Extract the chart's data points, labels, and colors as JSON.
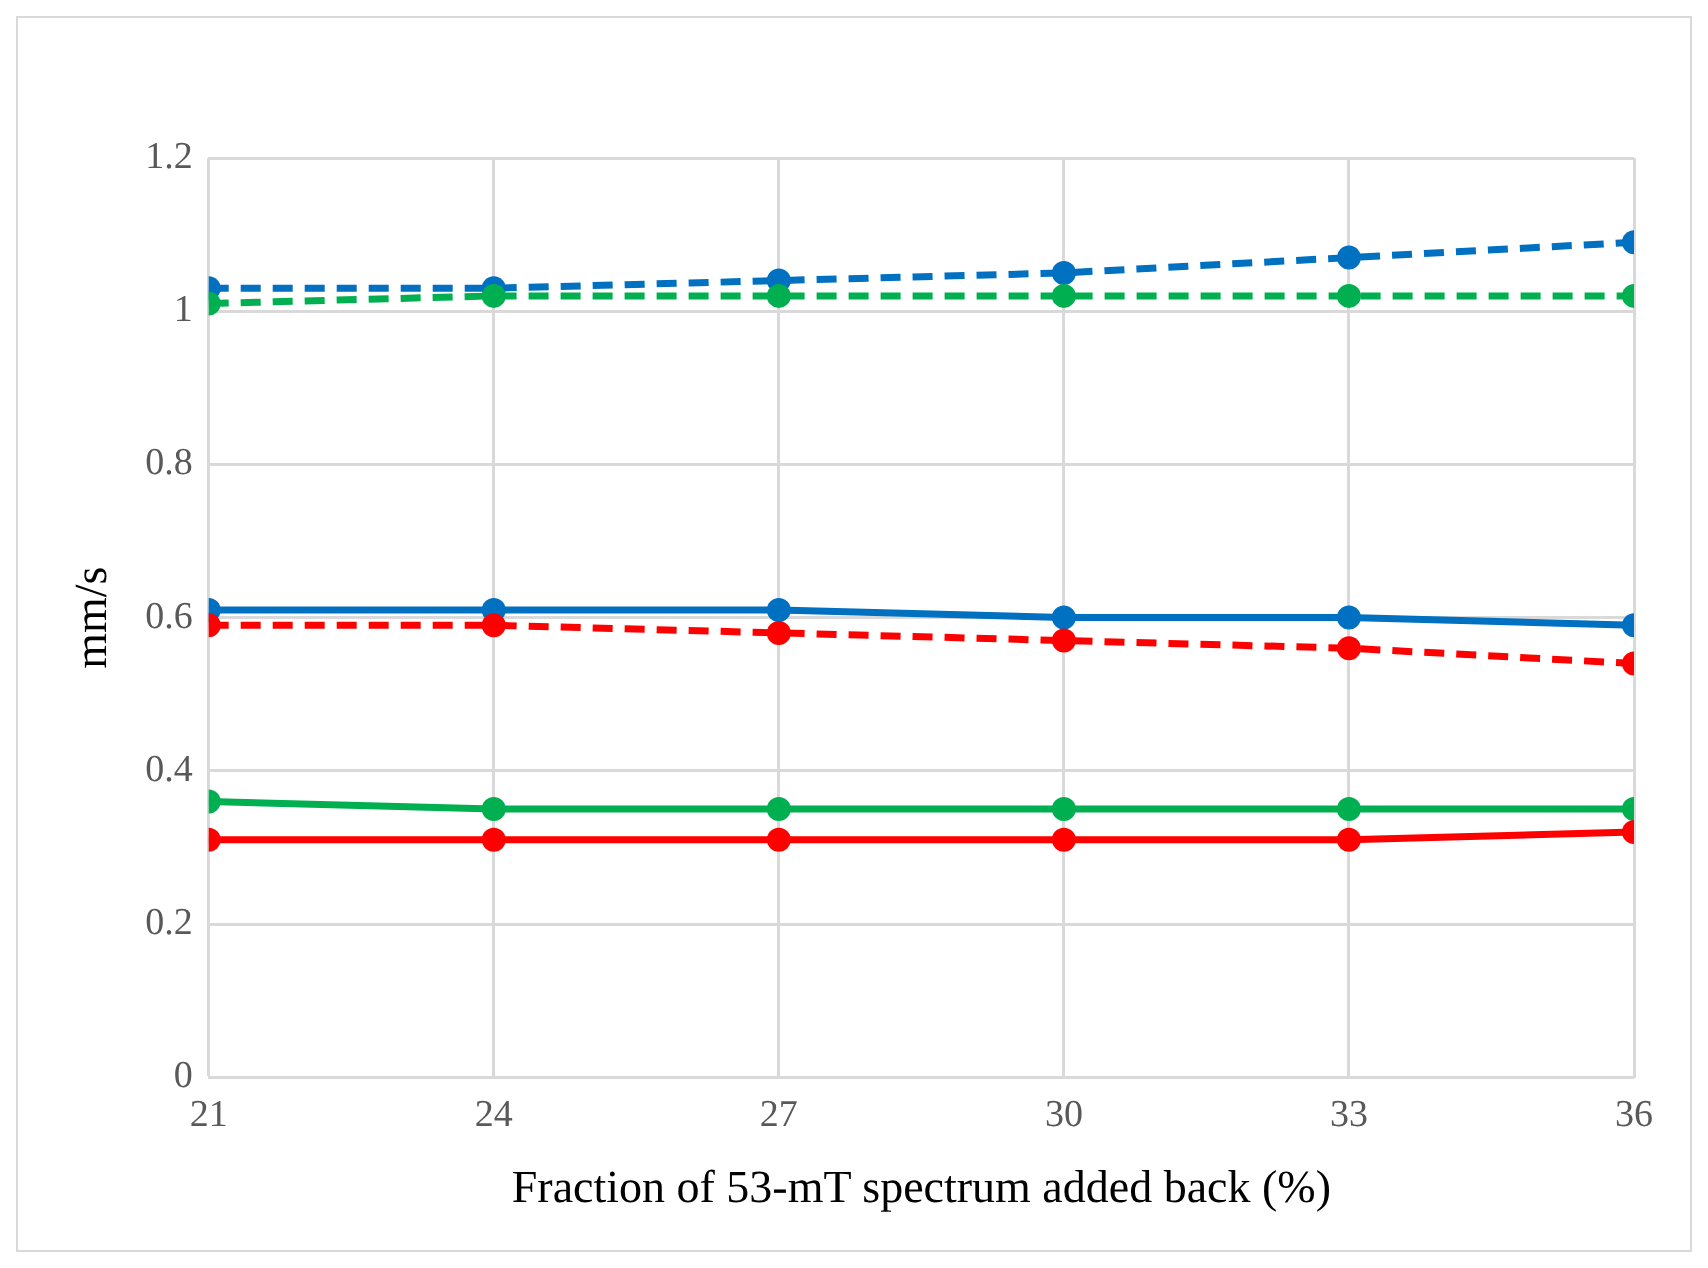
{
  "chart_data": {
    "type": "line",
    "xlabel": "Fraction of 53-mT spectrum added back (%)",
    "ylabel": "mm/s",
    "x": [
      21,
      24,
      27,
      30,
      33,
      36
    ],
    "xlim": [
      21,
      36
    ],
    "xticks": [
      21,
      24,
      27,
      30,
      33,
      36
    ],
    "ylim": [
      0,
      1.2
    ],
    "yticks": [
      0,
      0.2,
      0.4,
      0.6,
      0.8,
      1,
      1.2
    ],
    "grid": true,
    "legend": false,
    "marker": "circle",
    "series": [
      {
        "color": "#0070c0",
        "line_style": "dashed",
        "values": [
          1.03,
          1.03,
          1.04,
          1.05,
          1.07,
          1.09
        ]
      },
      {
        "color": "#00b050",
        "line_style": "dashed",
        "values": [
          1.01,
          1.02,
          1.02,
          1.02,
          1.02,
          1.02
        ]
      },
      {
        "color": "#0070c0",
        "line_style": "solid",
        "values": [
          0.61,
          0.61,
          0.61,
          0.6,
          0.6,
          0.59
        ]
      },
      {
        "color": "#ff0000",
        "line_style": "dashed",
        "values": [
          0.59,
          0.59,
          0.58,
          0.57,
          0.56,
          0.54
        ]
      },
      {
        "color": "#00b050",
        "line_style": "solid",
        "values": [
          0.36,
          0.35,
          0.35,
          0.35,
          0.35,
          0.35
        ]
      },
      {
        "color": "#ff0000",
        "line_style": "solid",
        "values": [
          0.31,
          0.31,
          0.31,
          0.31,
          0.31,
          0.32
        ]
      }
    ]
  }
}
